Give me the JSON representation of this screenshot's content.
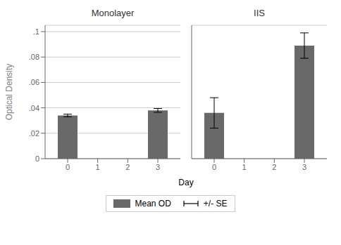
{
  "chart_data": [
    {
      "type": "bar",
      "title": "Monolayer",
      "ylabel": "Optical Density",
      "xlabel": "Day",
      "x": [
        0,
        3
      ],
      "xlim": [
        -0.75,
        3.75
      ],
      "xticks": [
        0,
        1,
        2,
        3
      ],
      "ylim": [
        0,
        0.105
      ],
      "yticks": [
        0,
        {
          "value": 0.02,
          "label": ".02"
        },
        {
          "value": 0.04,
          "label": ".04"
        },
        {
          "value": 0.06,
          "label": ".06"
        },
        {
          "value": 0.08,
          "label": ".08"
        },
        {
          "value": 0.1,
          "label": ".1"
        }
      ],
      "grid": true,
      "legend": "bottom",
      "series": [
        {
          "name": "Mean OD",
          "color": "#696969",
          "values": [
            0.034,
            0.038
          ],
          "errors": {
            "name": "+/- SE",
            "values": [
              0.001,
              0.0015
            ]
          }
        }
      ]
    },
    {
      "type": "bar",
      "title": "IIS",
      "x": [
        0,
        3
      ],
      "xlim": [
        -0.75,
        3.75
      ],
      "xticks": [
        0,
        1,
        2,
        3
      ],
      "ylim": [
        0,
        0.105
      ],
      "yticks": [
        0,
        {
          "value": 0.02,
          "label": ".02"
        },
        {
          "value": 0.04,
          "label": ".04"
        },
        {
          "value": 0.06,
          "label": ".06"
        },
        {
          "value": 0.08,
          "label": ".08"
        },
        {
          "value": 0.1,
          "label": ".1"
        }
      ],
      "grid": true,
      "tick_labels": "x",
      "series": [
        {
          "name": "Mean OD",
          "color": "#696969",
          "values": [
            0.036,
            0.089
          ],
          "errors": {
            "name": "+/- SE",
            "values": [
              0.012,
              0.01
            ]
          }
        }
      ]
    }
  ]
}
